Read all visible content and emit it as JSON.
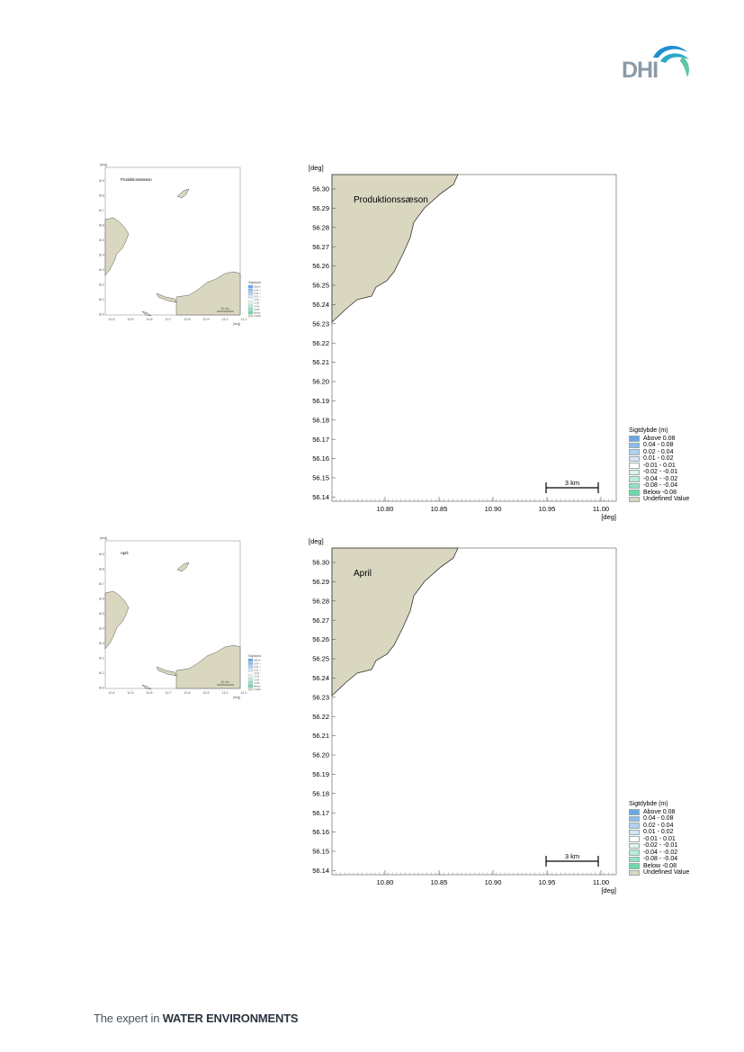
{
  "brand": {
    "name": "DHI",
    "footer_prefix": "The expert in ",
    "footer_strong": "WATER ENVIRONMENTS"
  },
  "colors": {
    "land": "#dad7c0",
    "coast": "#333333",
    "brand_blue": "#1f8fd0",
    "brand_green": "#5bc7a6"
  },
  "maps": [
    {
      "label": "Produktionssæson",
      "unit": "[deg]",
      "y_ticks": [
        "56.30",
        "56.29",
        "56.28",
        "56.27",
        "56.26",
        "56.25",
        "56.24",
        "56.23",
        "56.22",
        "56.21",
        "56.20",
        "56.19",
        "56.18",
        "56.17",
        "56.16",
        "56.15",
        "56.14"
      ],
      "x_ticks": [
        "10.80",
        "10.85",
        "10.90",
        "10.95",
        "11.00"
      ],
      "scale_bar": "3 km",
      "legend_title": "Sigtdybde (m)",
      "legend": [
        {
          "label": "Above  0.08",
          "color": "#6aa5e6"
        },
        {
          "label": " 0.04 -  0.08",
          "color": "#8cbbec"
        },
        {
          "label": " 0.02 -  0.04",
          "color": "#b0d0f2"
        },
        {
          "label": " 0.01 -  0.02",
          "color": "#d6e6f8"
        },
        {
          "label": "-0.01 -  0.01",
          "color": "#ffffff"
        },
        {
          "label": "-0.02 - -0.01",
          "color": "#ddf5ea"
        },
        {
          "label": "-0.04 - -0.02",
          "color": "#b8ecd5"
        },
        {
          "label": "-0.08 - -0.04",
          "color": "#92e2bf"
        },
        {
          "label": "Below -0.08",
          "color": "#6cd9a8"
        },
        {
          "label": "Undefined Value",
          "color": "#dad7c0"
        }
      ],
      "overview": {
        "label": "Produktionssæson",
        "y_ticks": [
          "56.9",
          "56.8",
          "56.7",
          "56.6",
          "56.5",
          "56.4",
          "56.3",
          "56.2",
          "56.1",
          "56.0"
        ],
        "x_ticks": [
          "10.4",
          "10.5",
          "10.6",
          "10.7",
          "10.8",
          "10.9",
          "11.0",
          "11.1"
        ],
        "scale_bar": "10 km",
        "legend_title": "Sigtdybde (m)",
        "legend": [
          "Above 0.08",
          "0.04 - 0.08",
          "0.02 - 0.04",
          "0.01 - 0.02",
          "-0.01 - 0.01",
          "-0.02 - -0.01",
          "-0.04 - -0.02",
          "-0.08 - -0.04",
          "Below -0.08",
          "Undefined Value"
        ]
      }
    },
    {
      "label": "April",
      "unit": "[deg]",
      "y_ticks": [
        "56.30",
        "56.29",
        "56.28",
        "56.27",
        "56.26",
        "56.25",
        "56.24",
        "56.23",
        "56.22",
        "56.21",
        "56.20",
        "56.19",
        "56.18",
        "56.17",
        "56.16",
        "56.15",
        "56.14"
      ],
      "x_ticks": [
        "10.80",
        "10.85",
        "10.90",
        "10.95",
        "11.00"
      ],
      "scale_bar": "3 km",
      "legend_title": "Sigtdybde (m)",
      "legend": [
        {
          "label": "Above  0.08",
          "color": "#6aa5e6"
        },
        {
          "label": " 0.04 -  0.08",
          "color": "#8cbbec"
        },
        {
          "label": " 0.02 -  0.04",
          "color": "#b0d0f2"
        },
        {
          "label": " 0.01 -  0.02",
          "color": "#d6e6f8"
        },
        {
          "label": "-0.01 -  0.01",
          "color": "#ffffff"
        },
        {
          "label": "-0.02 - -0.01",
          "color": "#ddf5ea"
        },
        {
          "label": "-0.04 - -0.02",
          "color": "#b8ecd5"
        },
        {
          "label": "-0.08 - -0.04",
          "color": "#92e2bf"
        },
        {
          "label": "Below -0.08",
          "color": "#6cd9a8"
        },
        {
          "label": "Undefined Value",
          "color": "#dad7c0"
        }
      ],
      "overview": {
        "label": "April",
        "y_ticks": [
          "56.9",
          "56.8",
          "56.7",
          "56.6",
          "56.5",
          "56.4",
          "56.3",
          "56.2",
          "56.1",
          "56.0"
        ],
        "x_ticks": [
          "10.4",
          "10.5",
          "10.6",
          "10.7",
          "10.8",
          "10.9",
          "11.0",
          "11.1"
        ],
        "scale_bar": "10 km",
        "legend_title": "Sigtdybde (m)",
        "legend": [
          "Above 0.08",
          "0.04 - 0.08",
          "0.02 - 0.04",
          "0.01 - 0.02",
          "-0.01 - 0.01",
          "-0.02 - -0.01",
          "-0.04 - -0.02",
          "-0.08 - -0.04",
          "Below -0.08",
          "Undefined Value"
        ]
      }
    }
  ]
}
